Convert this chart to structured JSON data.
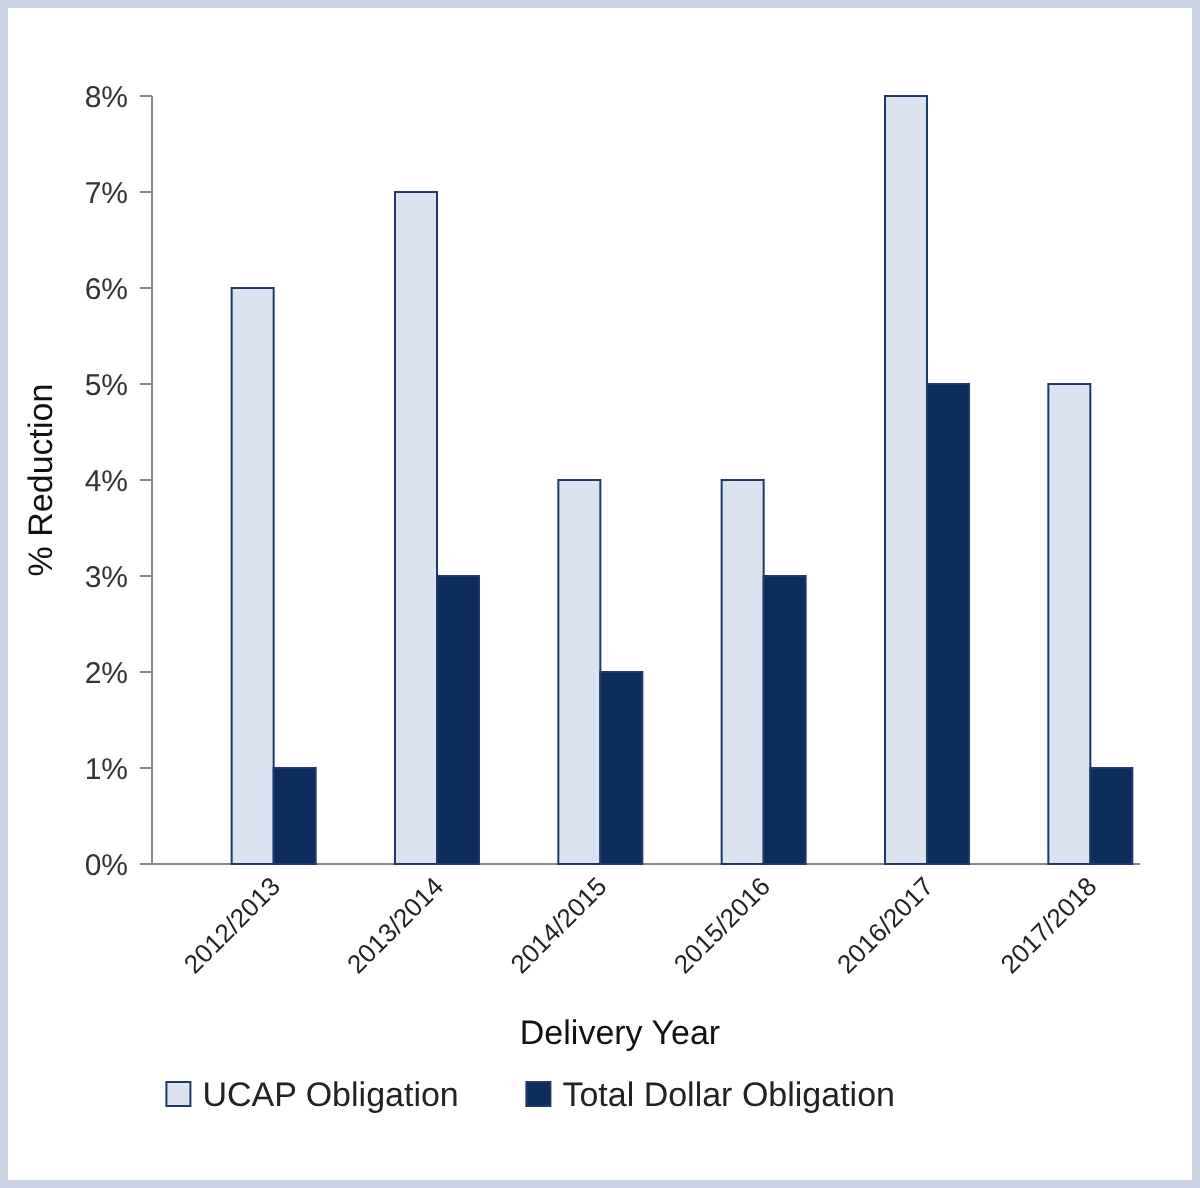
{
  "chart_data": {
    "type": "bar",
    "xlabel": "Delivery Year",
    "ylabel": "% Reduction",
    "categories": [
      "2012/2013",
      "2013/2014",
      "2014/2015",
      "2015/2016",
      "2016/2017",
      "2017/2018"
    ],
    "series": [
      {
        "name": "UCAP Obligation",
        "color": "#dce3f0",
        "values": [
          6,
          7,
          4,
          4,
          8,
          5
        ]
      },
      {
        "name": "Total Dollar Obligation",
        "color": "#0c2c5c",
        "values": [
          1,
          3,
          2,
          3,
          5,
          1
        ]
      }
    ],
    "ylim": [
      0,
      8
    ],
    "yticks": [
      {
        "value": 0,
        "label": "0%"
      },
      {
        "value": 1,
        "label": "1%"
      },
      {
        "value": 2,
        "label": "2%"
      },
      {
        "value": 3,
        "label": "3%"
      },
      {
        "value": 4,
        "label": "4%"
      },
      {
        "value": 5,
        "label": "5%"
      },
      {
        "value": 6,
        "label": "6%"
      },
      {
        "value": 7,
        "label": "7%"
      },
      {
        "value": 8,
        "label": "8%"
      }
    ],
    "grid": false,
    "legend": "bottom"
  }
}
